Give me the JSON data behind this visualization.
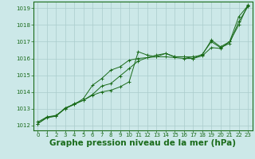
{
  "title": "Graphe pression niveau de la mer (hPa)",
  "title_fontsize": 7.5,
  "bg_color": "#cce8e8",
  "grid_color": "#aacccc",
  "line_color": "#1a6b1a",
  "ylim": [
    1011.7,
    1019.4
  ],
  "xlim": [
    -0.5,
    23.5
  ],
  "yticks": [
    1012,
    1013,
    1014,
    1015,
    1016,
    1017,
    1018,
    1019
  ],
  "xticks": [
    0,
    1,
    2,
    3,
    4,
    5,
    6,
    7,
    8,
    9,
    10,
    11,
    12,
    13,
    14,
    15,
    16,
    17,
    18,
    19,
    20,
    21,
    22,
    23
  ],
  "line1": [
    1012.2,
    1012.5,
    1012.6,
    1013.0,
    1013.3,
    1013.5,
    1013.8,
    1014.0,
    1014.1,
    1014.3,
    1014.6,
    1016.4,
    1016.2,
    1016.1,
    1016.3,
    1016.1,
    1016.1,
    1016.1,
    1016.2,
    1017.1,
    1016.7,
    1017.0,
    1018.5,
    1019.15
  ],
  "line2": [
    1012.1,
    1012.5,
    1012.55,
    1013.0,
    1013.25,
    1013.6,
    1014.4,
    1014.8,
    1015.3,
    1015.5,
    1015.9,
    1016.0,
    1016.05,
    1016.1,
    1016.1,
    1016.05,
    1016.0,
    1016.0,
    1016.15,
    1016.65,
    1016.6,
    1017.0,
    1018.0,
    1019.2
  ],
  "line3": [
    1012.1,
    1012.45,
    1012.55,
    1013.05,
    1013.25,
    1013.5,
    1013.85,
    1014.35,
    1014.5,
    1014.95,
    1015.4,
    1015.85,
    1016.05,
    1016.2,
    1016.3,
    1016.1,
    1016.1,
    1016.0,
    1016.25,
    1017.0,
    1016.65,
    1016.9,
    1018.2,
    1019.1
  ]
}
